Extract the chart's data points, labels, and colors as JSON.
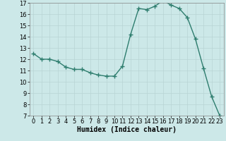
{
  "x": [
    0,
    1,
    2,
    3,
    4,
    5,
    6,
    7,
    8,
    9,
    10,
    11,
    12,
    13,
    14,
    15,
    16,
    17,
    18,
    19,
    20,
    21,
    22,
    23
  ],
  "y": [
    12.5,
    12.0,
    12.0,
    11.8,
    11.3,
    11.1,
    11.1,
    10.8,
    10.6,
    10.5,
    10.5,
    11.4,
    14.2,
    16.5,
    16.4,
    16.7,
    17.2,
    16.8,
    16.5,
    15.7,
    13.8,
    11.2,
    8.7,
    7.0
  ],
  "ylim": [
    7,
    17
  ],
  "xlim": [
    -0.5,
    23.5
  ],
  "yticks": [
    7,
    8,
    9,
    10,
    11,
    12,
    13,
    14,
    15,
    16,
    17
  ],
  "xticks": [
    0,
    1,
    2,
    3,
    4,
    5,
    6,
    7,
    8,
    9,
    10,
    11,
    12,
    13,
    14,
    15,
    16,
    17,
    18,
    19,
    20,
    21,
    22,
    23
  ],
  "xlabel": "Humidex (Indice chaleur)",
  "line_color": "#2e7d6e",
  "bg_color": "#cce8e8",
  "grid_color": "#b8d4d4",
  "marker": "+",
  "marker_size": 4,
  "linewidth": 1.0,
  "xlabel_fontsize": 7,
  "tick_fontsize": 6
}
